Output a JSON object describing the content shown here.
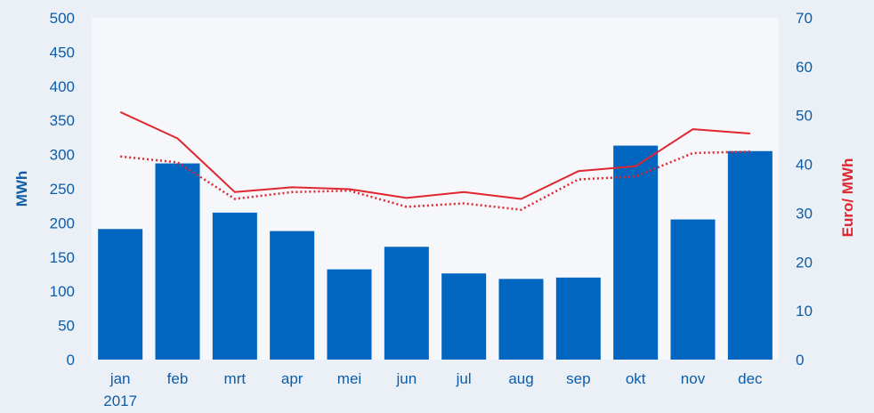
{
  "chart_data": {
    "type": "bar",
    "categories": [
      "jan",
      "feb",
      "mrt",
      "apr",
      "mei",
      "jun",
      "jul",
      "aug",
      "sep",
      "okt",
      "nov",
      "dec"
    ],
    "year_label": "2017",
    "bar_series": {
      "name": "",
      "axis": "left",
      "color": "#0066bf",
      "values": [
        191,
        287,
        215,
        188,
        132,
        165,
        126,
        118,
        120,
        313,
        205,
        305
      ]
    },
    "line_series": [
      {
        "name": "",
        "axis": "right",
        "style": "solid",
        "color": "#e0262e",
        "values": [
          50.7,
          45.3,
          34.3,
          35.3,
          34.9,
          33.1,
          34.3,
          32.9,
          38.6,
          39.6,
          47.2,
          46.3
        ]
      },
      {
        "name": "",
        "axis": "right",
        "style": "dotted",
        "color": "#e0262e",
        "values": [
          41.6,
          40.4,
          32.9,
          34.3,
          34.6,
          31.3,
          32.0,
          30.7,
          36.9,
          37.5,
          42.3,
          42.6
        ]
      }
    ],
    "ylabel_left": "MWh",
    "ylabel_right": "Euro/ MWh",
    "ylim_left": [
      0,
      500
    ],
    "ylim_right": [
      0,
      70
    ],
    "yticks_left": [
      0,
      50,
      100,
      150,
      200,
      250,
      300,
      350,
      400,
      450,
      500
    ],
    "yticks_right": [
      0,
      10,
      20,
      30,
      40,
      50,
      60,
      70
    ],
    "grid": false,
    "colors": {
      "background": "#eaf0f6",
      "plot_background": "#f5f7fa",
      "axis_text": "#0d5da8",
      "right_title": "#e0262e"
    }
  }
}
